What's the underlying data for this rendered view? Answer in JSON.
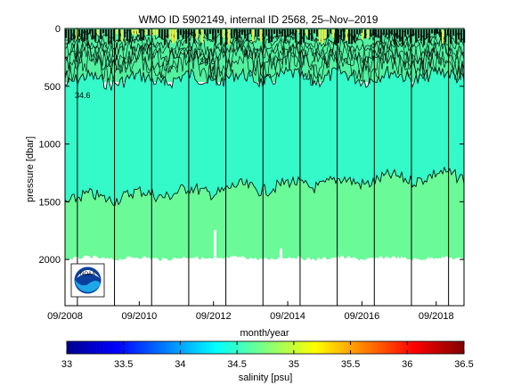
{
  "chart_data": {
    "type": "heatmap",
    "title": "WMO ID 5902149, internal ID 2568, 25–Nov–2019",
    "xlabel": "month/year",
    "ylabel": "pressure [dbar]",
    "x_ticks": [
      "09/2008",
      "09/2010",
      "09/2012",
      "09/2014",
      "09/2016",
      "09/2018"
    ],
    "y_ticks": [
      "0",
      "500",
      "1000",
      "1500",
      "2000"
    ],
    "ylim": [
      2400,
      0
    ],
    "xlim": [
      "2008-09",
      "2019-06"
    ],
    "colorbar": {
      "label": "salinity [psu]",
      "ticks": [
        "33",
        "33.5",
        "34",
        "34.5",
        "35",
        "35.5",
        "36",
        "36.5"
      ],
      "range": [
        33,
        36.5
      ]
    },
    "contour_labels": [
      "34.6",
      "34.6"
    ],
    "year_markers": [
      "2009-01",
      "2010-01",
      "2011-01",
      "2012-01",
      "2013-01",
      "2014-01",
      "2015-01",
      "2016-01",
      "2017-01",
      "2018-01",
      "2019-01"
    ],
    "salinity_layers": [
      {
        "pressure_top": 0,
        "pressure_bottom": 350,
        "salinity": 34.7
      },
      {
        "pressure_top": 350,
        "pressure_bottom": 1400,
        "salinity": 34.55
      },
      {
        "pressure_top": 1400,
        "pressure_bottom": 2000,
        "salinity": 34.72
      }
    ],
    "logo": "noaa-logo",
    "colors": {
      "upper_layer": "#52f2a0",
      "mid_layer": "#34f9c9",
      "deep_layer": "#6afa98",
      "surface_warm": "#f3ea3a"
    }
  }
}
